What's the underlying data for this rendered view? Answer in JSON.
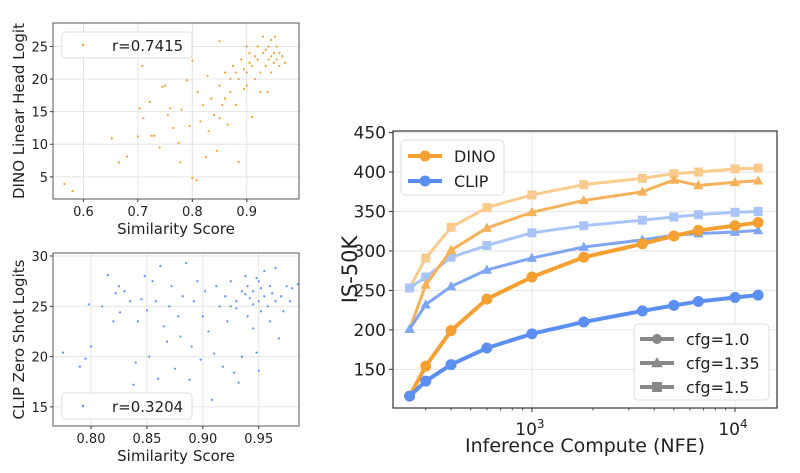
{
  "chart_data": [
    {
      "type": "scatter",
      "xlabel": "Similarity Score",
      "ylabel": "DINO Linear Head Logit",
      "xlim": [
        0.544,
        0.996
      ],
      "ylim": [
        1.6,
        28.6
      ],
      "xticks": [
        0.6,
        0.7,
        0.8,
        0.9
      ],
      "xtick_labels": [
        "0.6",
        "0.7",
        "0.8",
        "0.9"
      ],
      "yticks": [
        5,
        10,
        15,
        20,
        25
      ],
      "ytick_labels": [
        "5",
        "10",
        "15",
        "20",
        "25"
      ],
      "grid": true,
      "color": "#f5a033",
      "legend": {
        "label": "r=0.7415",
        "placement": "top-left"
      },
      "points": [
        [
          0.565,
          3.9
        ],
        [
          0.58,
          2.8
        ],
        [
          0.652,
          10.9
        ],
        [
          0.665,
          7.2
        ],
        [
          0.68,
          8.1
        ],
        [
          0.7,
          11.2
        ],
        [
          0.703,
          15.5
        ],
        [
          0.708,
          22
        ],
        [
          0.71,
          14
        ],
        [
          0.722,
          16.5
        ],
        [
          0.725,
          11.3
        ],
        [
          0.73,
          11.3
        ],
        [
          0.74,
          9.5
        ],
        [
          0.745,
          18.8
        ],
        [
          0.75,
          19
        ],
        [
          0.755,
          14.5
        ],
        [
          0.76,
          15.5
        ],
        [
          0.765,
          12.5
        ],
        [
          0.775,
          10.2
        ],
        [
          0.778,
          7.2
        ],
        [
          0.78,
          15.3
        ],
        [
          0.79,
          19.8
        ],
        [
          0.795,
          12.8
        ],
        [
          0.8,
          4.8
        ],
        [
          0.8,
          22.8
        ],
        [
          0.808,
          4.5
        ],
        [
          0.81,
          18
        ],
        [
          0.815,
          13.5
        ],
        [
          0.82,
          16
        ],
        [
          0.825,
          8
        ],
        [
          0.828,
          20.5
        ],
        [
          0.83,
          12
        ],
        [
          0.835,
          17
        ],
        [
          0.84,
          14.5
        ],
        [
          0.845,
          9
        ],
        [
          0.85,
          25.8
        ],
        [
          0.85,
          19
        ],
        [
          0.855,
          16
        ],
        [
          0.86,
          21
        ],
        [
          0.865,
          13
        ],
        [
          0.87,
          18
        ],
        [
          0.875,
          22
        ],
        [
          0.88,
          16
        ],
        [
          0.885,
          7.3
        ],
        [
          0.885,
          20
        ],
        [
          0.89,
          23
        ],
        [
          0.895,
          18.5
        ],
        [
          0.9,
          21
        ],
        [
          0.905,
          24
        ],
        [
          0.91,
          14.2
        ],
        [
          0.91,
          22
        ],
        [
          0.915,
          20
        ],
        [
          0.92,
          25
        ],
        [
          0.92,
          23
        ],
        [
          0.925,
          21
        ],
        [
          0.93,
          26.5
        ],
        [
          0.93,
          24
        ],
        [
          0.935,
          22
        ],
        [
          0.94,
          25
        ],
        [
          0.94,
          23
        ],
        [
          0.945,
          21
        ],
        [
          0.945,
          26
        ],
        [
          0.95,
          24
        ],
        [
          0.95,
          22.5
        ],
        [
          0.955,
          25
        ],
        [
          0.955,
          23
        ],
        [
          0.96,
          24
        ],
        [
          0.96,
          22
        ],
        [
          0.965,
          23.5
        ],
        [
          0.97,
          22.5
        ],
        [
          0.9,
          19
        ],
        [
          0.88,
          21
        ],
        [
          0.87,
          20
        ],
        [
          0.925,
          18
        ],
        [
          0.935,
          24.5
        ],
        [
          0.915,
          23.5
        ],
        [
          0.905,
          22.5
        ],
        [
          0.895,
          21.5
        ],
        [
          0.945,
          23.5
        ],
        [
          0.952,
          26.5
        ],
        [
          0.938,
          18
        ],
        [
          0.9,
          25
        ],
        [
          0.86,
          17
        ],
        [
          0.85,
          14
        ]
      ]
    },
    {
      "type": "scatter",
      "xlabel": "Similarity Score",
      "ylabel": "CLIP Zero Shot Logits",
      "xlim": [
        0.766,
        0.986
      ],
      "ylim": [
        13.1,
        30.3
      ],
      "xticks": [
        0.8,
        0.85,
        0.9,
        0.95
      ],
      "xtick_labels": [
        "0.80",
        "0.85",
        "0.90",
        "0.95"
      ],
      "yticks": [
        15,
        20,
        25,
        30
      ],
      "ytick_labels": [
        "15",
        "20",
        "25",
        "30"
      ],
      "grid": true,
      "color": "#5b8ff2",
      "legend": {
        "label": "r=0.3204",
        "placement": "bottom-left"
      },
      "points": [
        [
          0.775,
          20.4
        ],
        [
          0.79,
          19
        ],
        [
          0.795,
          19.8
        ],
        [
          0.798,
          25.2
        ],
        [
          0.8,
          21
        ],
        [
          0.81,
          25
        ],
        [
          0.815,
          28.1
        ],
        [
          0.82,
          23.5
        ],
        [
          0.822,
          26.3
        ],
        [
          0.825,
          27
        ],
        [
          0.826,
          24.4
        ],
        [
          0.83,
          26.5
        ],
        [
          0.835,
          25.5
        ],
        [
          0.838,
          17.2
        ],
        [
          0.84,
          19.4
        ],
        [
          0.842,
          23.5
        ],
        [
          0.845,
          25.7
        ],
        [
          0.848,
          28
        ],
        [
          0.85,
          24.6
        ],
        [
          0.852,
          20
        ],
        [
          0.855,
          27.5
        ],
        [
          0.858,
          25.5
        ],
        [
          0.86,
          17.8
        ],
        [
          0.862,
          29
        ],
        [
          0.865,
          23
        ],
        [
          0.868,
          21.5
        ],
        [
          0.87,
          25
        ],
        [
          0.872,
          27
        ],
        [
          0.875,
          18.8
        ],
        [
          0.878,
          24
        ],
        [
          0.88,
          22
        ],
        [
          0.882,
          26
        ],
        [
          0.885,
          29.3
        ],
        [
          0.888,
          17.7
        ],
        [
          0.89,
          21
        ],
        [
          0.892,
          25.5
        ],
        [
          0.895,
          27.5
        ],
        [
          0.898,
          19.7
        ],
        [
          0.9,
          24
        ],
        [
          0.902,
          26.5
        ],
        [
          0.905,
          22.5
        ],
        [
          0.908,
          15.7
        ],
        [
          0.91,
          20.3
        ],
        [
          0.912,
          27
        ],
        [
          0.915,
          25
        ],
        [
          0.918,
          19
        ],
        [
          0.92,
          26
        ],
        [
          0.922,
          23.5
        ],
        [
          0.925,
          27.5
        ],
        [
          0.928,
          18.4
        ],
        [
          0.93,
          25.5
        ],
        [
          0.932,
          17.4
        ],
        [
          0.935,
          20
        ],
        [
          0.935,
          26.5
        ],
        [
          0.938,
          28
        ],
        [
          0.94,
          24
        ],
        [
          0.94,
          27
        ],
        [
          0.942,
          25.8
        ],
        [
          0.945,
          26.5
        ],
        [
          0.945,
          22.8
        ],
        [
          0.948,
          20.4
        ],
        [
          0.95,
          25.5
        ],
        [
          0.95,
          27.5
        ],
        [
          0.95,
          18.6
        ],
        [
          0.952,
          24.5
        ],
        [
          0.955,
          26
        ],
        [
          0.955,
          28.5
        ],
        [
          0.958,
          25
        ],
        [
          0.96,
          27
        ],
        [
          0.96,
          23.5
        ],
        [
          0.962,
          26.3
        ],
        [
          0.965,
          25.5
        ],
        [
          0.965,
          28.8
        ],
        [
          0.968,
          21.8
        ],
        [
          0.97,
          26
        ],
        [
          0.972,
          24.5
        ],
        [
          0.975,
          27
        ],
        [
          0.978,
          25.5
        ],
        [
          0.98,
          26.8
        ],
        [
          0.985,
          27.2
        ],
        [
          0.925,
          25
        ],
        [
          0.93,
          24.8
        ],
        [
          0.938,
          26.2
        ],
        [
          0.945,
          25.2
        ],
        [
          0.952,
          26.8
        ],
        [
          0.948,
          27.8
        ]
      ]
    },
    {
      "type": "line",
      "xlabel": "Inference Compute (NFE)",
      "ylabel": "IS-50K",
      "xscale": "log",
      "xlim": [
        207,
        16100
      ],
      "ylim": [
        101,
        452
      ],
      "xticks": [
        1000,
        10000
      ],
      "xtick_labels": [
        {
          "base": "10",
          "exp": "3"
        },
        {
          "base": "10",
          "exp": "4"
        }
      ],
      "yticks": [
        150,
        200,
        250,
        300,
        350,
        400,
        450
      ],
      "ytick_labels": [
        "150",
        "200",
        "250",
        "300",
        "350",
        "400",
        "450"
      ],
      "grid": true,
      "x": [
        250,
        300,
        400,
        600,
        1000,
        1800,
        3500,
        5000,
        6600,
        10000,
        13000
      ],
      "series": [
        {
          "model": "DINO",
          "cfg": "cfg=1.0",
          "marker": "circle",
          "color": "#f5a033",
          "values": [
            116,
            154,
            199,
            239,
            267,
            292,
            309,
            319,
            326,
            332,
            336
          ]
        },
        {
          "model": "DINO",
          "cfg": "cfg=1.35",
          "marker": "triangle",
          "color": "#f6b25a",
          "values": [
            201,
            257,
            301,
            329,
            349,
            364,
            375,
            390,
            383,
            387,
            389
          ]
        },
        {
          "model": "DINO",
          "cfg": "cfg=1.5",
          "marker": "square",
          "color": "#f9cb8c",
          "values": [
            253,
            291,
            330,
            355,
            371,
            384,
            392,
            398,
            400,
            404,
            405
          ]
        },
        {
          "model": "CLIP",
          "cfg": "cfg=1.0",
          "marker": "circle",
          "color": "#5b8ff2",
          "values": [
            116,
            135,
            156,
            177,
            195,
            210,
            224,
            231,
            236,
            241,
            244
          ]
        },
        {
          "model": "CLIP",
          "cfg": "cfg=1.35",
          "marker": "triangle",
          "color": "#7fa6f5",
          "values": [
            201,
            232,
            255,
            276,
            291,
            305,
            314,
            320,
            322,
            324,
            326
          ]
        },
        {
          "model": "CLIP",
          "cfg": "cfg=1.5",
          "marker": "square",
          "color": "#abc4f8",
          "values": [
            253,
            267,
            292,
            307,
            323,
            332,
            339,
            343,
            346,
            349,
            350
          ]
        }
      ],
      "legend_models": {
        "placement": "top-left",
        "entries": [
          {
            "label": "DINO",
            "color": "#f5a033"
          },
          {
            "label": "CLIP",
            "color": "#5b8ff2"
          }
        ]
      },
      "legend_cfg": {
        "placement": "bottom-right",
        "color": "#888888",
        "entries": [
          {
            "label": "cfg=1.0",
            "marker": "circle"
          },
          {
            "label": "cfg=1.35",
            "marker": "triangle"
          },
          {
            "label": "cfg=1.5",
            "marker": "square"
          }
        ]
      }
    }
  ]
}
